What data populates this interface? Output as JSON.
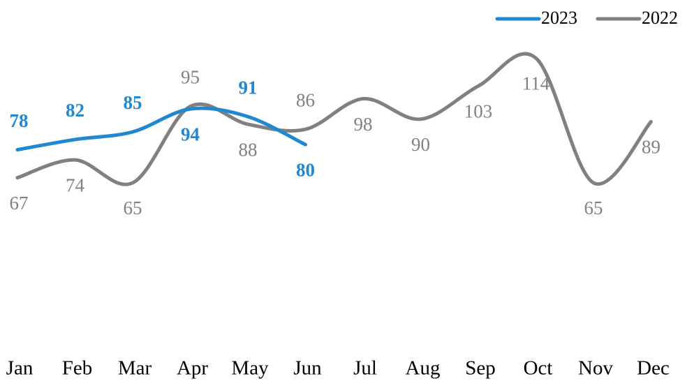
{
  "chart_data": {
    "type": "line",
    "categories": [
      "Jan",
      "Feb",
      "Mar",
      "Apr",
      "May",
      "Jun",
      "Jul",
      "Aug",
      "Sep",
      "Oct",
      "Nov",
      "Dec"
    ],
    "series": [
      {
        "name": "2023",
        "color": "#1f88d0",
        "values": [
          78,
          82,
          85,
          94,
          91,
          80,
          null,
          null,
          null,
          null,
          null,
          null
        ]
      },
      {
        "name": "2022",
        "color": "#808080",
        "values": [
          67,
          74,
          65,
          95,
          88,
          86,
          98,
          90,
          103,
          114,
          65,
          89
        ]
      }
    ],
    "ylim": [
      0,
      130
    ],
    "legend": "top-right"
  }
}
